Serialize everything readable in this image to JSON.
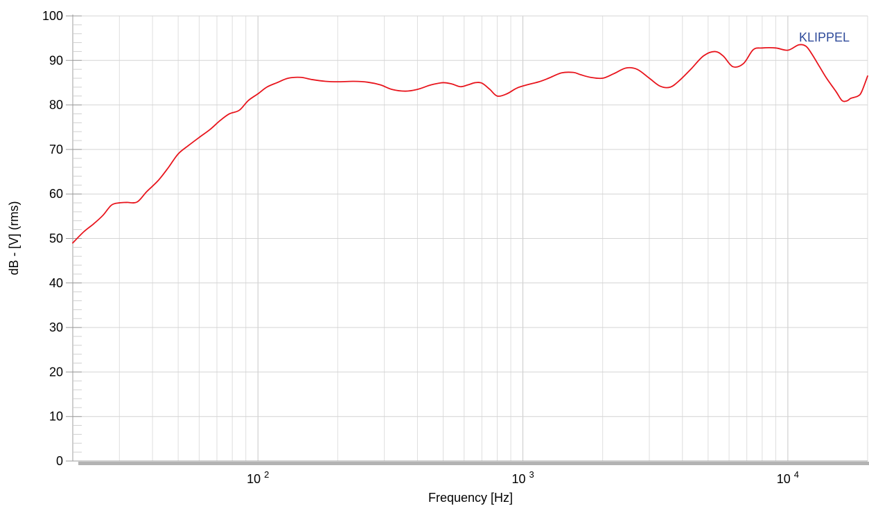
{
  "chart_data": {
    "type": "line",
    "title": "",
    "xlabel": "Frequency [Hz]",
    "ylabel": "dB - [V] (rms)",
    "x_scale": "log",
    "xlim": [
      20,
      20000
    ],
    "ylim": [
      0,
      100
    ],
    "y_ticks": [
      0,
      10,
      20,
      30,
      40,
      50,
      60,
      70,
      80,
      90,
      100
    ],
    "x_ticks": [
      {
        "value": 100,
        "base": "10",
        "exp": "2"
      },
      {
        "value": 1000,
        "base": "10",
        "exp": "3"
      },
      {
        "value": 10000,
        "base": "10",
        "exp": "4"
      }
    ],
    "grid": true,
    "brand": {
      "text": "KLIPPEL",
      "color": "#2e4a9a",
      "placement": "top-right"
    },
    "series": [
      {
        "color": "#e8141c",
        "x": [
          20,
          22,
          24,
          26,
          28,
          30,
          32,
          35,
          38,
          42,
          46,
          50,
          55,
          60,
          66,
          72,
          78,
          85,
          92,
          100,
          108,
          118,
          130,
          145,
          160,
          180,
          200,
          230,
          260,
          290,
          320,
          360,
          400,
          450,
          500,
          540,
          580,
          620,
          660,
          700,
          750,
          800,
          870,
          950,
          1050,
          1150,
          1250,
          1400,
          1550,
          1650,
          1800,
          2000,
          2200,
          2450,
          2700,
          3000,
          3300,
          3600,
          3900,
          4300,
          4800,
          5300,
          5700,
          6200,
          6800,
          7400,
          8000,
          9000,
          10000,
          11000,
          11700,
          12300,
          13200,
          14000,
          15200,
          16000,
          16700,
          17300,
          18400,
          19000,
          20000
        ],
        "y": [
          49,
          51.5,
          53.3,
          55.2,
          57.5,
          58,
          58.1,
          58.2,
          60.5,
          63,
          66,
          69,
          71,
          72.7,
          74.5,
          76.5,
          78,
          78.8,
          81,
          82.5,
          84,
          85,
          86,
          86.2,
          85.7,
          85.3,
          85.2,
          85.3,
          85.1,
          84.5,
          83.5,
          83.1,
          83.5,
          84.5,
          85,
          84.7,
          84.1,
          84.5,
          85,
          84.9,
          83.5,
          82,
          82.5,
          83.8,
          84.6,
          85.2,
          86,
          87.2,
          87.3,
          86.8,
          86.2,
          86,
          87,
          88.3,
          88,
          86,
          84.2,
          84,
          85.5,
          88,
          91,
          92,
          91,
          88.6,
          89.3,
          92.4,
          92.8,
          92.8,
          92.3,
          93.5,
          93.2,
          91.5,
          88.5,
          86,
          83,
          81,
          80.9,
          81.5,
          82,
          83,
          86.5
        ]
      }
    ]
  }
}
